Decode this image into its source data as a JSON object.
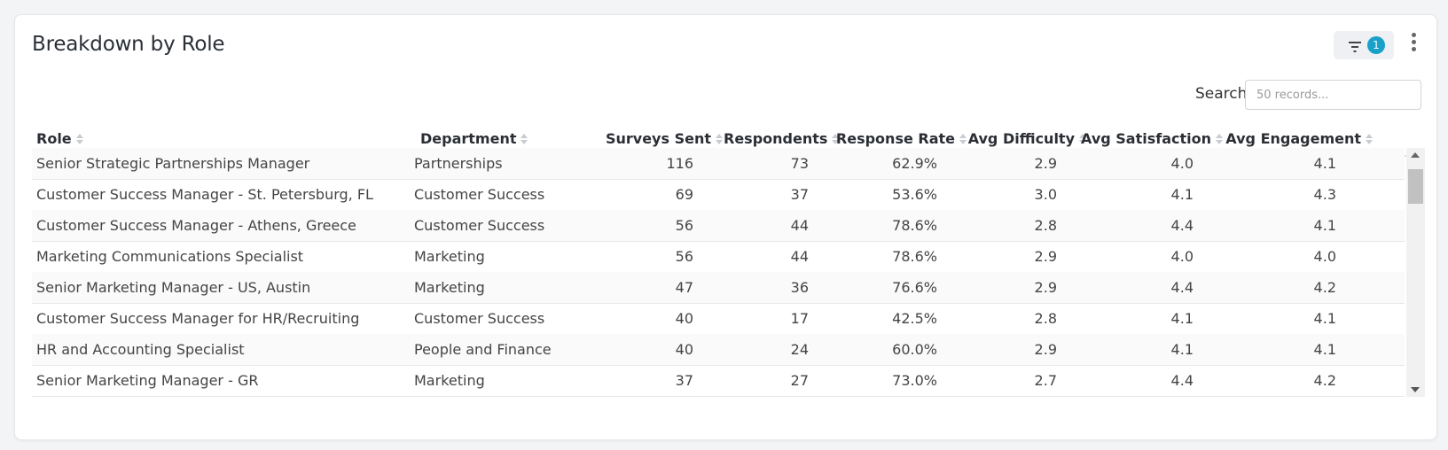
{
  "card": {
    "title": "Breakdown by Role",
    "filter_count": "1"
  },
  "search": {
    "label": "Search",
    "placeholder": "50 records..."
  },
  "table": {
    "columns": [
      "Role",
      "Department",
      "Surveys Sent",
      "Respondents",
      "Response Rate",
      "Avg Difficulty",
      "Avg Satisfaction",
      "Avg Engagement"
    ],
    "rows": [
      [
        "Senior Strategic Partnerships Manager",
        "Partnerships",
        "116",
        "73",
        "62.9%",
        "2.9",
        "4.0",
        "4.1"
      ],
      [
        "Customer Success Manager - St. Petersburg, FL",
        "Customer Success",
        "69",
        "37",
        "53.6%",
        "3.0",
        "4.1",
        "4.3"
      ],
      [
        "Customer Success Manager - Athens, Greece",
        "Customer Success",
        "56",
        "44",
        "78.6%",
        "2.8",
        "4.4",
        "4.1"
      ],
      [
        "Marketing Communications Specialist",
        "Marketing",
        "56",
        "44",
        "78.6%",
        "2.9",
        "4.0",
        "4.0"
      ],
      [
        "Senior Marketing Manager - US, Austin",
        "Marketing",
        "47",
        "36",
        "76.6%",
        "2.9",
        "4.4",
        "4.2"
      ],
      [
        "Customer Success Manager for HR/Recruiting",
        "Customer Success",
        "40",
        "17",
        "42.5%",
        "2.8",
        "4.1",
        "4.1"
      ],
      [
        "HR and Accounting Specialist",
        "People and Finance",
        "40",
        "24",
        "60.0%",
        "2.9",
        "4.1",
        "4.1"
      ],
      [
        "Senior Marketing Manager - GR",
        "Marketing",
        "37",
        "27",
        "73.0%",
        "2.7",
        "4.4",
        "4.2"
      ]
    ]
  },
  "icons": {
    "filter": "filter-icon",
    "more": "more-vertical-icon",
    "sort": "sort-icon"
  },
  "colors": {
    "badge": "#1aa1c9"
  }
}
